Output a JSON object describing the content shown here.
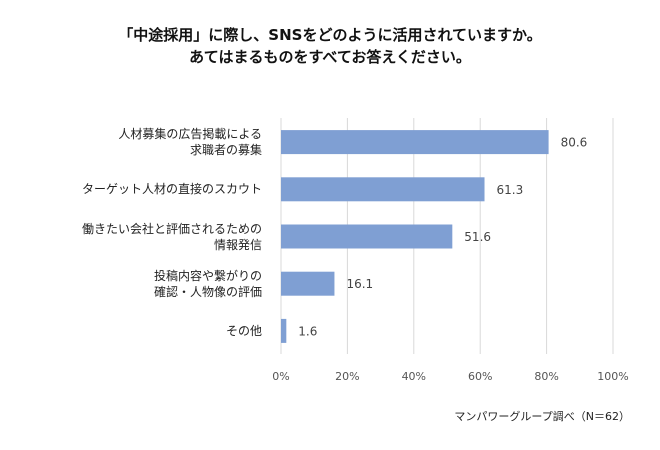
{
  "chart_data": {
    "type": "barh",
    "title": "「中途採用」に際し、SNSをどのように活用されていますか。\nあてはまるものをすべてお答えください。",
    "categories": [
      "人材募集の広告掲載による\n求職者の募集",
      "ターゲット人材の直接のスカウト",
      "働きたい会社と評価されるための\n情報発信",
      "投稿内容や繋がりの\n確認・人物像の評価",
      "その他"
    ],
    "values": [
      80.6,
      61.3,
      51.6,
      16.1,
      1.6
    ],
    "color": "#7f9fd3",
    "xlim": [
      0,
      100
    ],
    "xticks": [
      {
        "value": 0,
        "label": "0%"
      },
      {
        "value": 20,
        "label": "20%"
      },
      {
        "value": 40,
        "label": "40%"
      },
      {
        "value": 60,
        "label": "60%"
      },
      {
        "value": 80,
        "label": "80%"
      },
      {
        "value": 100,
        "label": "100%"
      }
    ],
    "grid": true,
    "source": "マンパワーグループ調べ（N＝62）"
  }
}
